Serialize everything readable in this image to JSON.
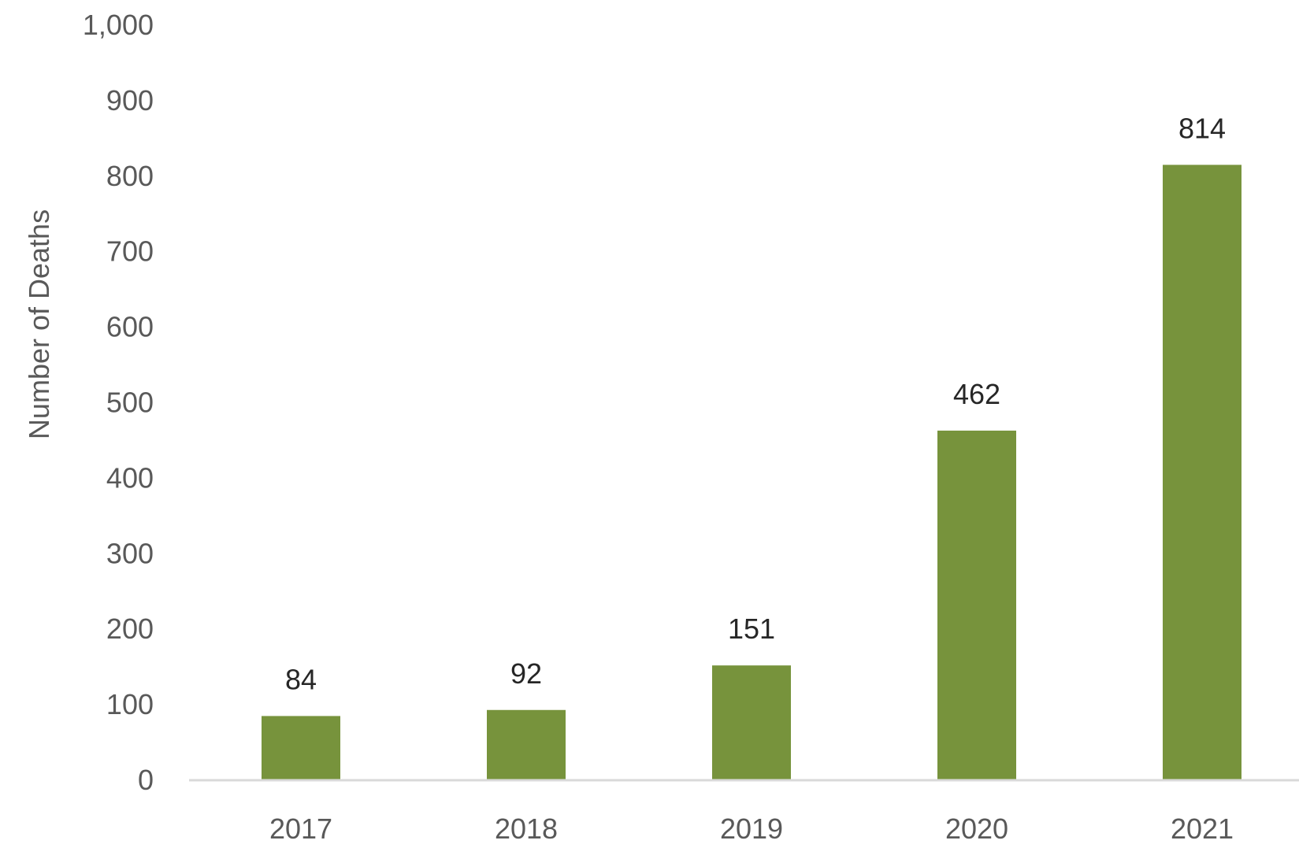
{
  "chart_data": {
    "type": "bar",
    "title": "",
    "xlabel": "",
    "ylabel": "Number of Deaths",
    "categories": [
      "2017",
      "2018",
      "2019",
      "2020",
      "2021"
    ],
    "values": [
      84,
      92,
      151,
      462,
      814
    ],
    "data_labels": [
      "84",
      "92",
      "151",
      "462",
      "814"
    ],
    "ylim": [
      0,
      1000
    ],
    "y_ticks": [
      0,
      100,
      200,
      300,
      400,
      500,
      600,
      700,
      800,
      900,
      1000
    ],
    "y_tick_labels": [
      "0",
      "100",
      "200",
      "300",
      "400",
      "500",
      "600",
      "700",
      "800",
      "900",
      "1,000"
    ],
    "grid": false,
    "legend": "none",
    "colors": {
      "bar": "#77933C",
      "axis_line": "#D9D9D9"
    }
  }
}
